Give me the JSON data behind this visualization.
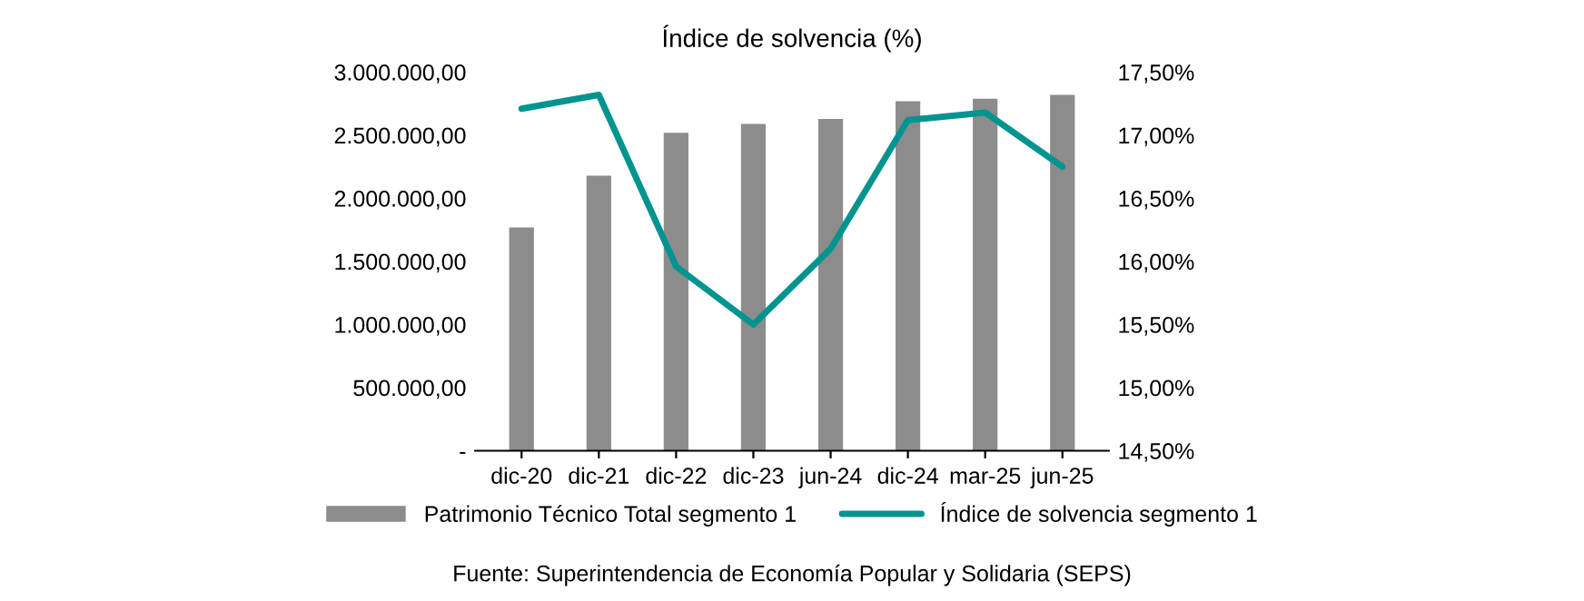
{
  "chart_data": {
    "type": "bar",
    "title": "Índice de solvencia (%)",
    "categories": [
      "dic-20",
      "dic-21",
      "dic-22",
      "dic-23",
      "jun-24",
      "dic-24",
      "mar-25",
      "jun-25"
    ],
    "series": [
      {
        "name": "Patrimonio Técnico Total segmento 1",
        "color": "#8c8c8c",
        "values": [
          1770000,
          2180000,
          2520000,
          2590000,
          2630000,
          2770000,
          2790000,
          2820000
        ]
      },
      {
        "name": "Índice de solvencia segmento 1",
        "type": "line",
        "axis": "y2",
        "color": "#009490",
        "values": [
          17.21,
          17.32,
          15.96,
          15.5,
          16.1,
          17.12,
          17.18,
          16.75
        ]
      }
    ],
    "ylim": [
      0,
      3000000
    ],
    "yticks": [
      {
        "value": 0,
        "label": "-"
      },
      {
        "value": 500000,
        "label": "500.000,00"
      },
      {
        "value": 1000000,
        "label": "1.000.000,00"
      },
      {
        "value": 1500000,
        "label": "1.500.000,00"
      },
      {
        "value": 2000000,
        "label": "2.000.000,00"
      },
      {
        "value": 2500000,
        "label": "2.500.000,00"
      },
      {
        "value": 3000000,
        "label": "3.000.000,00"
      }
    ],
    "y2lim": [
      14.5,
      17.5
    ],
    "y2ticks": [
      {
        "value": 14.5,
        "label": "14,50%"
      },
      {
        "value": 15,
        "label": "15,00%"
      },
      {
        "value": 15.5,
        "label": "15,50%"
      },
      {
        "value": 16,
        "label": "16,00%"
      },
      {
        "value": 16.5,
        "label": "16,50%"
      },
      {
        "value": 17,
        "label": "17,00%"
      },
      {
        "value": 17.5,
        "label": "17,50%"
      }
    ],
    "grid": false,
    "legend": "bottom",
    "marker": "none",
    "line_style": "solid",
    "annotations": [
      "Fuente: Superintendencia de Economía Popular y Solidaria (SEPS)"
    ]
  }
}
